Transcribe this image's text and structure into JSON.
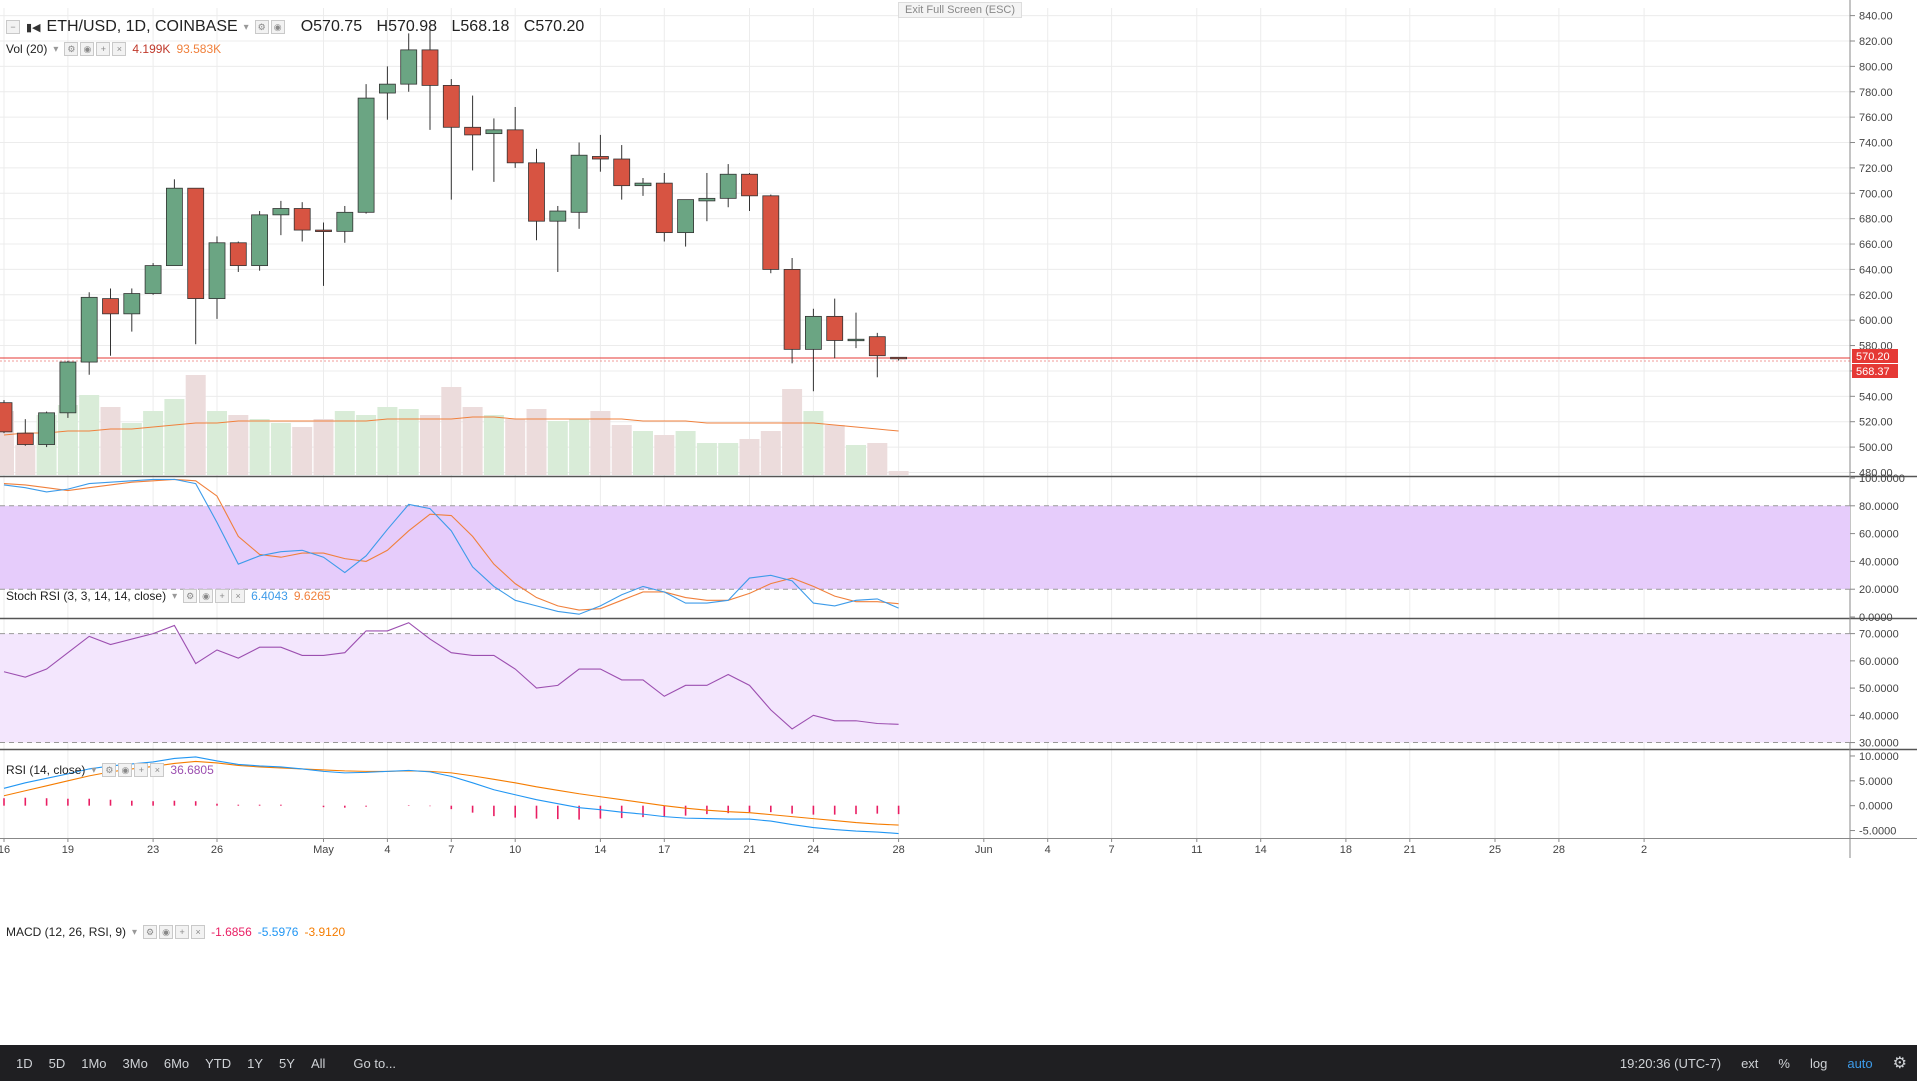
{
  "header": {
    "symbol": "ETH/USD, 1D, COINBASE",
    "open": "O570.75",
    "high": "H570.98",
    "low": "L568.18",
    "close": "C570.20"
  },
  "exit_fullscreen": "Exit Full Screen (ESC)",
  "volume_legend": {
    "label": "Vol (20)",
    "value1": "4.199K",
    "value2": "93.583K"
  },
  "stoch_legend": {
    "label": "Stoch RSI (3, 3, 14, 14, close)",
    "k": "6.4043",
    "d": "9.6265"
  },
  "rsi_legend": {
    "label": "RSI (14, close)",
    "value": "36.6805"
  },
  "macd_legend": {
    "label": "MACD (12, 26, RSI, 9)",
    "hist": "-1.6856",
    "macd": "-5.5976",
    "signal": "-3.9120"
  },
  "price_tags": {
    "last": "570.20",
    "low": "568.37"
  },
  "colors": {
    "up": "#6ba583",
    "down": "#d75442",
    "wick": "#333333",
    "vol_up": "#d9ecd8",
    "vol_down": "#ecdcdc",
    "vol_ma": "#f0803c",
    "stoch_k": "#3d9be9",
    "stoch_d": "#f0803c",
    "stoch_band": "#e6ccfb",
    "rsi_line": "#9c4fb0",
    "rsi_band": "#f3e6fd",
    "macd_line": "#2196f3",
    "signal_line": "#f57c00",
    "hist": "#e91e63",
    "price_line": "#e53935"
  },
  "bottom_bar": {
    "ranges": [
      "1D",
      "5D",
      "1Mo",
      "3Mo",
      "6Mo",
      "YTD",
      "1Y",
      "5Y",
      "All"
    ],
    "goto": "Go to...",
    "time": "19:20:36 (UTC-7)",
    "ext": "ext",
    "percent": "%",
    "log": "log",
    "auto": "auto"
  },
  "chart_data": {
    "type": "candlestick",
    "title": "ETH/USD, 1D, COINBASE",
    "price_axis": {
      "ylim": [
        478,
        846
      ],
      "ticks": [
        480,
        500,
        520,
        540,
        560,
        580,
        600,
        620,
        640,
        660,
        680,
        700,
        720,
        740,
        760,
        780,
        800,
        820,
        840
      ]
    },
    "x_tick_labels": [
      {
        "label": "16",
        "day": 16
      },
      {
        "label": "19",
        "day": 19
      },
      {
        "label": "23",
        "day": 23
      },
      {
        "label": "26",
        "day": 26
      },
      {
        "label": "May",
        "day": 31
      },
      {
        "label": "4",
        "day": 34
      },
      {
        "label": "7",
        "day": 37
      },
      {
        "label": "10",
        "day": 40
      },
      {
        "label": "14",
        "day": 44
      },
      {
        "label": "17",
        "day": 47
      },
      {
        "label": "21",
        "day": 51
      },
      {
        "label": "24",
        "day": 54
      },
      {
        "label": "28",
        "day": 58
      },
      {
        "label": "Jun",
        "day": 62
      },
      {
        "label": "4",
        "day": 65
      },
      {
        "label": "7",
        "day": 68
      },
      {
        "label": "11",
        "day": 72
      },
      {
        "label": "14",
        "day": 75
      },
      {
        "label": "18",
        "day": 79
      },
      {
        "label": "21",
        "day": 82
      },
      {
        "label": "25",
        "day": 86
      },
      {
        "label": "28",
        "day": 89
      },
      {
        "label": "2",
        "day": 93
      }
    ],
    "candles": [
      {
        "o": 535,
        "h": 537,
        "l": 511,
        "c": 512
      },
      {
        "o": 511,
        "h": 522,
        "l": 501,
        "c": 502
      },
      {
        "o": 502,
        "h": 528,
        "l": 500,
        "c": 527
      },
      {
        "o": 527,
        "h": 568,
        "l": 523,
        "c": 567
      },
      {
        "o": 567,
        "h": 622,
        "l": 557,
        "c": 618
      },
      {
        "o": 617,
        "h": 625,
        "l": 572,
        "c": 605
      },
      {
        "o": 605,
        "h": 625,
        "l": 591,
        "c": 621
      },
      {
        "o": 621,
        "h": 645,
        "l": 620,
        "c": 643
      },
      {
        "o": 643,
        "h": 711,
        "l": 643,
        "c": 704
      },
      {
        "o": 704,
        "h": 704,
        "l": 581,
        "c": 617
      },
      {
        "o": 617,
        "h": 666,
        "l": 601,
        "c": 661
      },
      {
        "o": 661,
        "h": 662,
        "l": 638,
        "c": 643
      },
      {
        "o": 643,
        "h": 686,
        "l": 639,
        "c": 683
      },
      {
        "o": 683,
        "h": 694,
        "l": 667,
        "c": 688
      },
      {
        "o": 688,
        "h": 693,
        "l": 662,
        "c": 671
      },
      {
        "o": 671,
        "h": 677,
        "l": 627,
        "c": 670
      },
      {
        "o": 670,
        "h": 690,
        "l": 661,
        "c": 685
      },
      {
        "o": 685,
        "h": 786,
        "l": 684,
        "c": 775
      },
      {
        "o": 779,
        "h": 800,
        "l": 758,
        "c": 786
      },
      {
        "o": 786,
        "h": 826,
        "l": 780,
        "c": 813
      },
      {
        "o": 813,
        "h": 829,
        "l": 750,
        "c": 785
      },
      {
        "o": 785,
        "h": 790,
        "l": 695,
        "c": 752
      },
      {
        "o": 752,
        "h": 777,
        "l": 718,
        "c": 746
      },
      {
        "o": 747,
        "h": 759,
        "l": 709,
        "c": 750
      },
      {
        "o": 750,
        "h": 768,
        "l": 720,
        "c": 724
      },
      {
        "o": 724,
        "h": 735,
        "l": 663,
        "c": 678
      },
      {
        "o": 678,
        "h": 690,
        "l": 638,
        "c": 686
      },
      {
        "o": 685,
        "h": 740,
        "l": 672,
        "c": 730
      },
      {
        "o": 729,
        "h": 746,
        "l": 717,
        "c": 727
      },
      {
        "o": 727,
        "h": 738,
        "l": 695,
        "c": 706
      },
      {
        "o": 706,
        "h": 712,
        "l": 698,
        "c": 708
      },
      {
        "o": 708,
        "h": 716,
        "l": 662,
        "c": 669
      },
      {
        "o": 669,
        "h": 695,
        "l": 658,
        "c": 695
      },
      {
        "o": 694,
        "h": 716,
        "l": 678,
        "c": 696
      },
      {
        "o": 696,
        "h": 723,
        "l": 689,
        "c": 715
      },
      {
        "o": 715,
        "h": 716,
        "l": 686,
        "c": 698
      },
      {
        "o": 698,
        "h": 699,
        "l": 637,
        "c": 640
      },
      {
        "o": 640,
        "h": 649,
        "l": 566,
        "c": 577
      },
      {
        "o": 577,
        "h": 609,
        "l": 544,
        "c": 603
      },
      {
        "o": 603,
        "h": 617,
        "l": 570,
        "c": 584
      },
      {
        "o": 584,
        "h": 606,
        "l": 578,
        "c": 585
      },
      {
        "o": 587,
        "h": 590,
        "l": 555,
        "c": 572
      },
      {
        "o": 570.75,
        "h": 570.98,
        "l": 568.18,
        "c": 570.2
      }
    ],
    "volume": [
      32,
      15,
      30,
      35,
      40,
      34,
      26,
      32,
      38,
      50,
      32,
      30,
      28,
      26,
      24,
      28,
      32,
      30,
      34,
      33,
      30,
      44,
      34,
      30,
      28,
      33,
      27,
      28,
      32,
      25,
      22,
      20,
      22,
      16,
      16,
      18,
      22,
      43,
      32,
      25,
      15,
      16,
      2
    ],
    "volume_ma": [
      20,
      21,
      21,
      22,
      22,
      23,
      23,
      24,
      25,
      26,
      26,
      27,
      27,
      27,
      27,
      27,
      27,
      27,
      28,
      28,
      28,
      28,
      29,
      29,
      28,
      28,
      28,
      28,
      28,
      28,
      27,
      27,
      27,
      26,
      26,
      26,
      26,
      26,
      26,
      25,
      24,
      23,
      22
    ],
    "stoch_rsi": {
      "ylim": [
        0,
        100
      ],
      "ticks": [
        0,
        20,
        40,
        60,
        80,
        100
      ],
      "bands": [
        20,
        80
      ],
      "k": [
        95,
        93,
        90,
        92,
        96,
        97,
        98,
        99,
        99,
        96,
        68,
        38,
        44,
        47,
        48,
        43,
        32,
        44,
        63,
        81,
        78,
        62,
        36,
        22,
        12,
        8,
        4,
        2,
        8,
        16,
        22,
        18,
        10,
        10,
        12,
        28,
        30,
        26,
        10,
        8,
        12,
        13,
        6.4
      ],
      "d": [
        96,
        95,
        93,
        91,
        93,
        95,
        97,
        98,
        99,
        98,
        87,
        58,
        45,
        43,
        46,
        46,
        42,
        40,
        48,
        62,
        74,
        73,
        58,
        38,
        24,
        14,
        8,
        5,
        6,
        12,
        18,
        18,
        14,
        12,
        12,
        17,
        24,
        28,
        22,
        15,
        11,
        11,
        9.6
      ]
    },
    "rsi": {
      "ylim": [
        28,
        75
      ],
      "ticks": [
        30,
        40,
        50,
        60,
        70
      ],
      "bands": [
        30,
        70
      ],
      "values": [
        56,
        54,
        57,
        63,
        69,
        66,
        68,
        70,
        73,
        59,
        64,
        61,
        65,
        65,
        62,
        62,
        63,
        71,
        71,
        74,
        68,
        63,
        62,
        62,
        57,
        50,
        51,
        57,
        57,
        53,
        53,
        47,
        51,
        51,
        55,
        51,
        42,
        35,
        40,
        38,
        38,
        37,
        36.68
      ]
    },
    "macd": {
      "ylim": [
        -6.5,
        11
      ],
      "ticks": [
        -5,
        0,
        5,
        10
      ],
      "macd": [
        3.5,
        4.6,
        5.5,
        6.4,
        7.4,
        8.0,
        8.4,
        8.8,
        9.5,
        9.8,
        9.0,
        8.3,
        8.0,
        7.8,
        7.4,
        6.9,
        6.6,
        6.7,
        6.9,
        7.1,
        6.8,
        5.9,
        4.6,
        3.2,
        2.2,
        1.2,
        0.4,
        -0.4,
        -0.8,
        -1.3,
        -1.7,
        -2.2,
        -2.5,
        -2.6,
        -2.7,
        -2.7,
        -3.1,
        -3.8,
        -4.4,
        -4.8,
        -5.1,
        -5.3,
        -5.6
      ],
      "signal": [
        2.0,
        3.0,
        4.0,
        5.0,
        6.0,
        6.8,
        7.4,
        7.9,
        8.5,
        8.9,
        8.6,
        8.1,
        7.8,
        7.6,
        7.4,
        7.2,
        7.0,
        6.9,
        6.9,
        7.0,
        6.9,
        6.6,
        6.0,
        5.3,
        4.6,
        3.8,
        3.1,
        2.4,
        1.8,
        1.2,
        0.6,
        0.0,
        -0.5,
        -0.9,
        -1.2,
        -1.4,
        -1.8,
        -2.2,
        -2.6,
        -3.0,
        -3.4,
        -3.7,
        -3.9
      ],
      "hist": [
        1.5,
        1.6,
        1.5,
        1.4,
        1.4,
        1.2,
        1.0,
        0.9,
        1.0,
        0.9,
        0.4,
        0.2,
        0.2,
        0.2,
        0.0,
        -0.3,
        -0.4,
        -0.2,
        0.0,
        0.1,
        -0.1,
        -0.7,
        -1.4,
        -2.1,
        -2.4,
        -2.6,
        -2.7,
        -2.8,
        -2.6,
        -2.5,
        -2.3,
        -2.2,
        -2.0,
        -1.7,
        -1.5,
        -1.3,
        -1.3,
        -1.6,
        -1.8,
        -1.8,
        -1.7,
        -1.6,
        -1.7
      ]
    }
  }
}
